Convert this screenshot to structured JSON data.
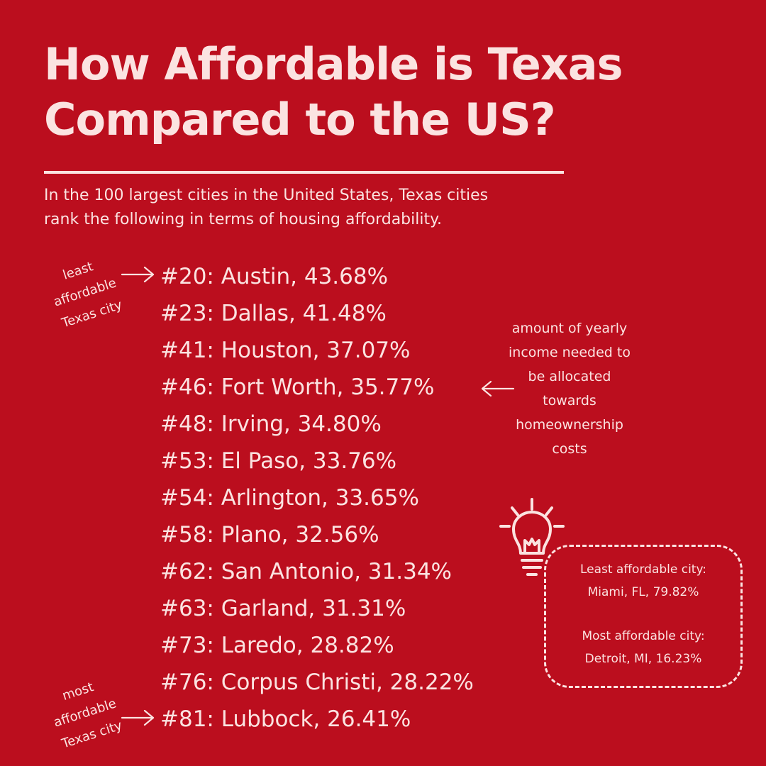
{
  "title": {
    "line1": "How Affordable is Texas",
    "line2": "Compared to the US?"
  },
  "subtitle": {
    "line1": "In the 100 largest cities in the United States, Texas cities",
    "line2": "rank the following in terms of housing affordability."
  },
  "rankings": [
    "#20: Austin, 43.68%",
    "#23: Dallas, 41.48%",
    "#41: Houston, 37.07%",
    "#46: Fort Worth, 35.77%",
    "#48: Irving, 34.80%",
    "#53: El Paso, 33.76%",
    "#54: Arlington, 33.65%",
    "#58: Plano, 32.56%",
    "#62: San Antonio, 31.34%",
    "#63: Garland, 31.31%",
    "#73: Laredo, 28.82%",
    "#76: Corpus Christi, 28.22%",
    "#81: Lubbock, 26.41%"
  ],
  "notes": {
    "least": [
      "least",
      "affordable",
      "Texas city"
    ],
    "most": [
      "most",
      "affordable",
      "Texas city"
    ],
    "income": [
      "amount of yearly",
      "income needed to",
      "be allocated",
      "towards",
      "homeownership",
      "costs"
    ]
  },
  "callout": {
    "least_label": "Least affordable city:",
    "least_value": "Miami, FL, 79.82%",
    "most_label": "Most affordable city:",
    "most_value": "Detroit, MI, 16.23%"
  },
  "icons": {
    "arrow": "arrow-right-icon",
    "arrow_left": "arrow-left-icon",
    "bulb": "lightbulb-icon"
  },
  "colors": {
    "background": "#bb0e1e",
    "text": "#fbe3e1"
  }
}
